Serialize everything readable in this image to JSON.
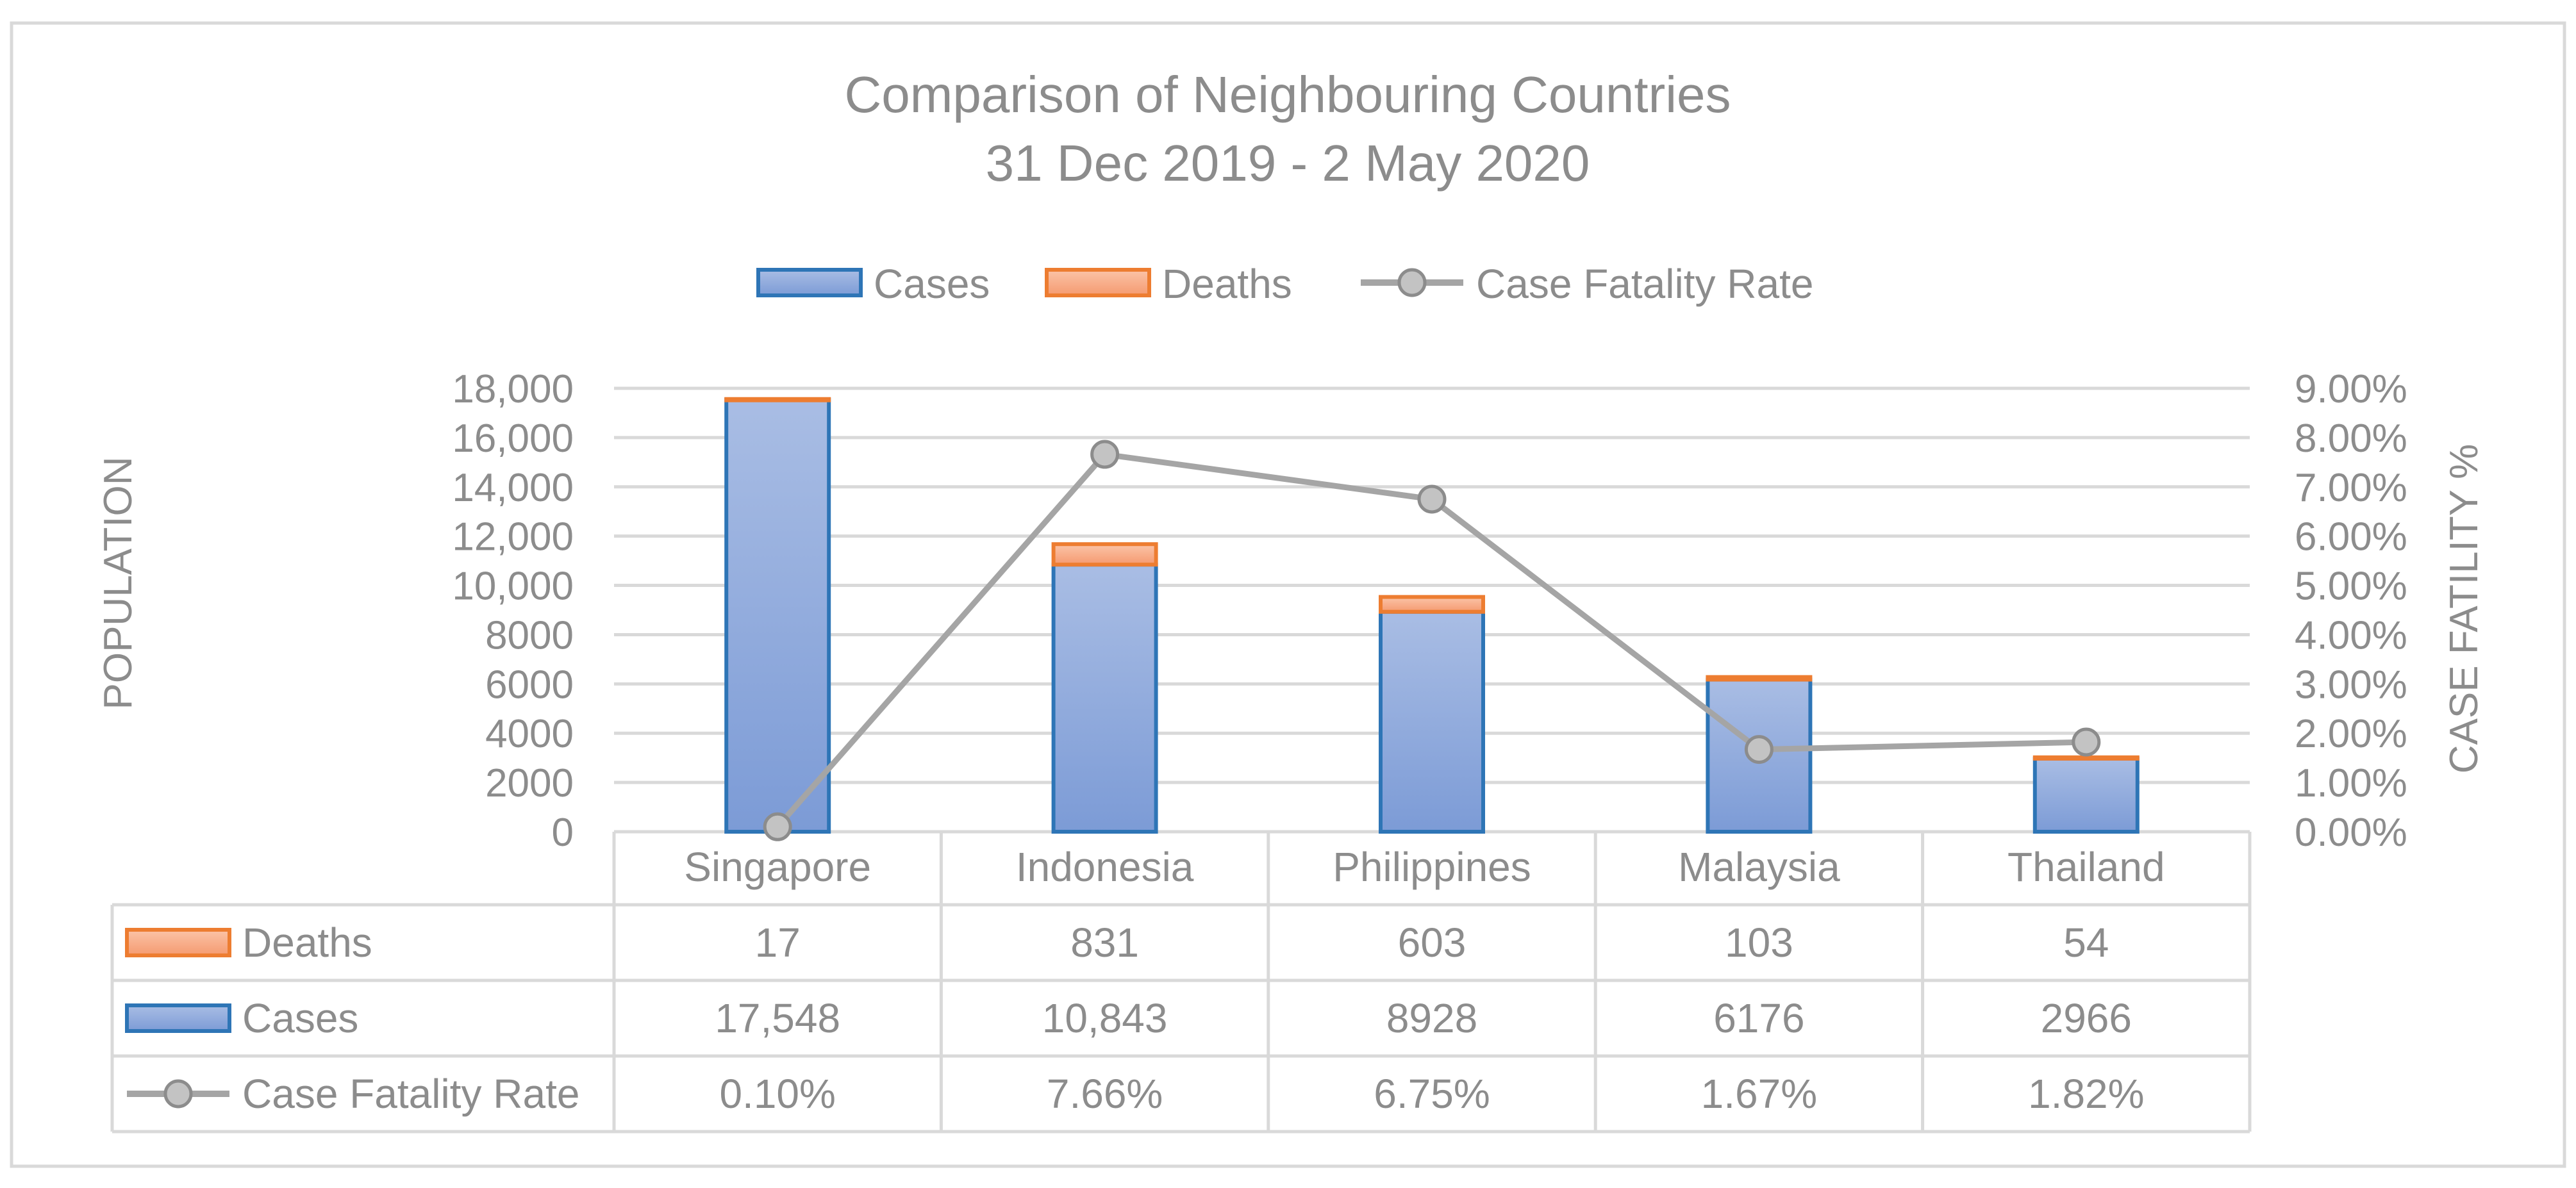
{
  "chart_data": {
    "type": "bar",
    "stacked": true,
    "title": "Comparison of Neighbouring Countries",
    "subtitle": "31 Dec 2019 - 2 May 2020",
    "ylabel": "POPULATION",
    "y2label": "CASE FATILITY %",
    "ylim": [
      0,
      18000
    ],
    "y2lim": [
      0,
      9
    ],
    "yticks": [
      "0",
      "2000",
      "4000",
      "6000",
      "8000",
      "10,000",
      "12,000",
      "14,000",
      "16,000",
      "18,000"
    ],
    "y2ticks": [
      "0.00%",
      "1.00%",
      "2.00%",
      "3.00%",
      "4.00%",
      "5.00%",
      "6.00%",
      "7.00%",
      "8.00%",
      "9.00%"
    ],
    "categories": [
      "Singapore",
      "Indonesia",
      "Philippines",
      "Malaysia",
      "Thailand"
    ],
    "legend_position": "top",
    "series": [
      {
        "name": "Cases",
        "kind": "bar",
        "axis": "left",
        "color": "#8faadc",
        "border": "#2e75b6",
        "values": [
          17548,
          10843,
          8928,
          6176,
          2966
        ],
        "labels": [
          "17,548",
          "10,843",
          "8928",
          "6176",
          "2966"
        ]
      },
      {
        "name": "Deaths",
        "kind": "bar",
        "axis": "left",
        "color": "#f8b08c",
        "border": "#ed7d31",
        "values": [
          17,
          831,
          603,
          103,
          54
        ],
        "labels": [
          "17",
          "831",
          "603",
          "103",
          "54"
        ]
      },
      {
        "name": "Case Fatality  Rate",
        "kind": "line",
        "axis": "right",
        "color": "#a5a5a5",
        "values": [
          0.1,
          7.66,
          6.75,
          1.67,
          1.82
        ],
        "labels": [
          "0.10%",
          "7.66%",
          "6.75%",
          "1.67%",
          "1.82%"
        ]
      }
    ],
    "table_rows": [
      "Deaths",
      "Cases",
      "Case Fatality  Rate"
    ]
  }
}
